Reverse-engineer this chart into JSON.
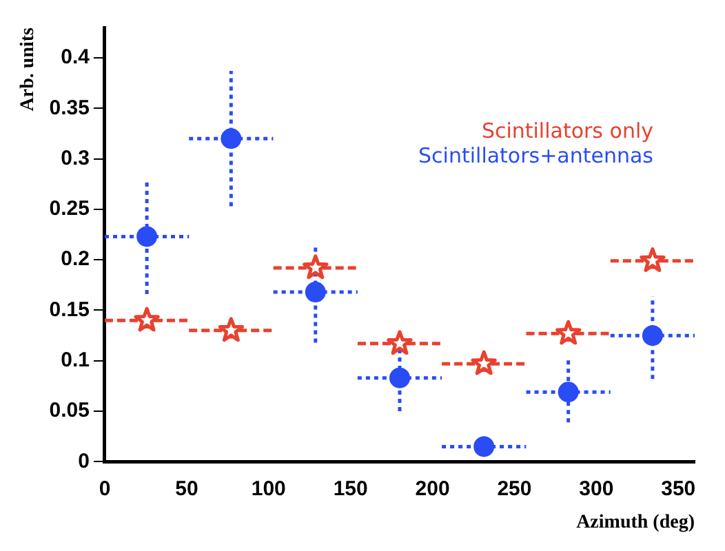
{
  "chart_data": {
    "type": "scatter",
    "xlabel": "Azimuth (deg)",
    "ylabel": "Arb. units",
    "xlim": [
      0,
      360
    ],
    "xticks": [
      0,
      50,
      100,
      150,
      200,
      250,
      300,
      350
    ],
    "ylim": [
      0,
      0.43
    ],
    "yticks": [
      0,
      0.05,
      0.1,
      0.15,
      0.2,
      0.25,
      0.3,
      0.35,
      0.4
    ],
    "grid": false,
    "legend": "top right",
    "series": [
      {
        "name": "Scintillators only",
        "color": "#e8412f",
        "marker": "star",
        "x": [
          25.7,
          77.1,
          128.6,
          180,
          231.4,
          282.9,
          334.3
        ],
        "values": [
          0.14,
          0.13,
          0.192,
          0.117,
          0.097,
          0.127,
          0.199
        ],
        "errors": [
          0.008,
          0.008,
          0.008,
          0.008,
          0.008,
          0.008,
          0.008
        ],
        "xerrors": [
          25.7,
          25.7,
          25.7,
          25.7,
          25.7,
          25.7,
          25.7
        ]
      },
      {
        "name": "Scintillators+antennas",
        "color": "#2a4cf5",
        "marker": "circle",
        "x": [
          25.7,
          77.1,
          128.6,
          180,
          231.4,
          282.9,
          334.3
        ],
        "values": [
          0.223,
          0.32,
          0.168,
          0.083,
          0.015,
          0.069,
          0.125
        ],
        "errors": [
          [
            0.166,
            0.279
          ],
          [
            0.253,
            0.387
          ],
          [
            0.118,
            0.216
          ],
          [
            0.05,
            0.112
          ],
          [
            0.005,
            0.025
          ],
          [
            0.039,
            0.102
          ],
          [
            0.082,
            0.164
          ]
        ],
        "xerrors": [
          25.7,
          25.7,
          25.7,
          25.7,
          25.7,
          25.7,
          25.7
        ]
      }
    ]
  }
}
